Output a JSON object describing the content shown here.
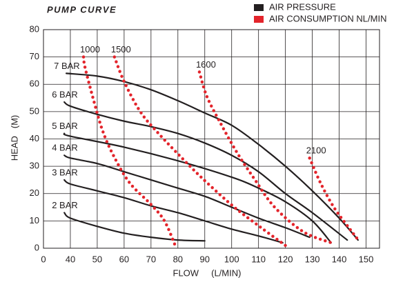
{
  "chart_data": {
    "type": "line",
    "title": "PUMP CURVE",
    "x_label": "FLOW     (L/MIN)",
    "y_label": "HEAD   (M)",
    "xlim": [
      0,
      155
    ],
    "xticks": [
      0,
      40,
      50,
      60,
      70,
      80,
      90,
      100,
      110,
      120,
      130,
      140,
      150
    ],
    "ylim": [
      0,
      80
    ],
    "yticks": [
      0,
      10,
      20,
      30,
      40,
      50,
      60,
      70,
      80
    ],
    "grid": true,
    "legend_position": "top-right",
    "legend": [
      {
        "label": "AIR PRESSURE",
        "color": "#231f20"
      },
      {
        "label": "AIR CONSUMPTION NL/MIN",
        "color": "#e3242b"
      }
    ],
    "series": [
      {
        "name": "7 BAR",
        "color": "#231f20",
        "line_style": "solid",
        "x": [
          34,
          50,
          60,
          70,
          80,
          90,
          100,
          110,
          120,
          130,
          140,
          147
        ],
        "values": [
          64,
          63,
          61,
          58,
          54,
          49.5,
          45,
          38,
          30,
          21,
          11,
          3
        ]
      },
      {
        "name": "6 BAR",
        "color": "#231f20",
        "line_style": "solid",
        "x": [
          31,
          40,
          50,
          60,
          70,
          80,
          90,
          100,
          110,
          120,
          130,
          143
        ],
        "values": [
          53.5,
          52,
          49,
          46.5,
          44.5,
          42,
          38.5,
          34,
          28,
          20,
          13,
          3
        ]
      },
      {
        "name": "5 BAR",
        "color": "#231f20",
        "line_style": "solid",
        "x": [
          31,
          40,
          60,
          80,
          100,
          110,
          120,
          130,
          137
        ],
        "values": [
          42,
          41,
          37,
          32,
          26,
          22,
          17,
          10,
          2
        ]
      },
      {
        "name": "4 BAR",
        "color": "#231f20",
        "line_style": "solid",
        "x": [
          31,
          40,
          50,
          60,
          70,
          80,
          90,
          100,
          110,
          120,
          129
        ],
        "values": [
          34,
          33,
          31,
          28,
          25,
          22,
          19,
          15,
          11,
          7.5,
          4
        ]
      },
      {
        "name": "3 BAR",
        "color": "#231f20",
        "line_style": "solid",
        "x": [
          31,
          40,
          50,
          60,
          70,
          80,
          90,
          100,
          110,
          119
        ],
        "values": [
          25,
          23.5,
          21,
          18.5,
          15.5,
          13,
          10,
          7,
          4.5,
          2
        ]
      },
      {
        "name": "2 BAR",
        "color": "#231f20",
        "line_style": "solid",
        "x": [
          31,
          40,
          50,
          60,
          70,
          80,
          90
        ],
        "values": [
          13,
          11,
          8,
          5.5,
          4,
          3,
          2.7
        ]
      },
      {
        "name": "1000",
        "color": "#e3242b",
        "line_style": "dotted",
        "x": [
          44.9,
          45.5,
          48.7,
          52,
          56,
          62,
          70,
          75,
          79
        ],
        "values": [
          70,
          66,
          54,
          43,
          34,
          24,
          16,
          10,
          1
        ]
      },
      {
        "name": "1500",
        "color": "#e3242b",
        "line_style": "dotted",
        "x": [
          56.4,
          60,
          66,
          72.8,
          83,
          90.8,
          101,
          111,
          120
        ],
        "values": [
          70,
          61,
          50,
          42,
          31.5,
          24,
          15,
          7.5,
          1
        ]
      },
      {
        "name": "1600",
        "color": "#e3242b",
        "line_style": "dotted",
        "x": [
          88,
          90.8,
          96,
          102,
          108.7,
          116,
          126.7,
          137
        ],
        "values": [
          64.5,
          55.5,
          45.5,
          35,
          25,
          15,
          6,
          2
        ]
      },
      {
        "name": "2100",
        "color": "#e3242b",
        "line_style": "dotted",
        "x": [
          129,
          133,
          138,
          143.6,
          147.5
        ],
        "values": [
          33,
          24,
          15,
          7.5,
          2.5
        ]
      }
    ]
  }
}
